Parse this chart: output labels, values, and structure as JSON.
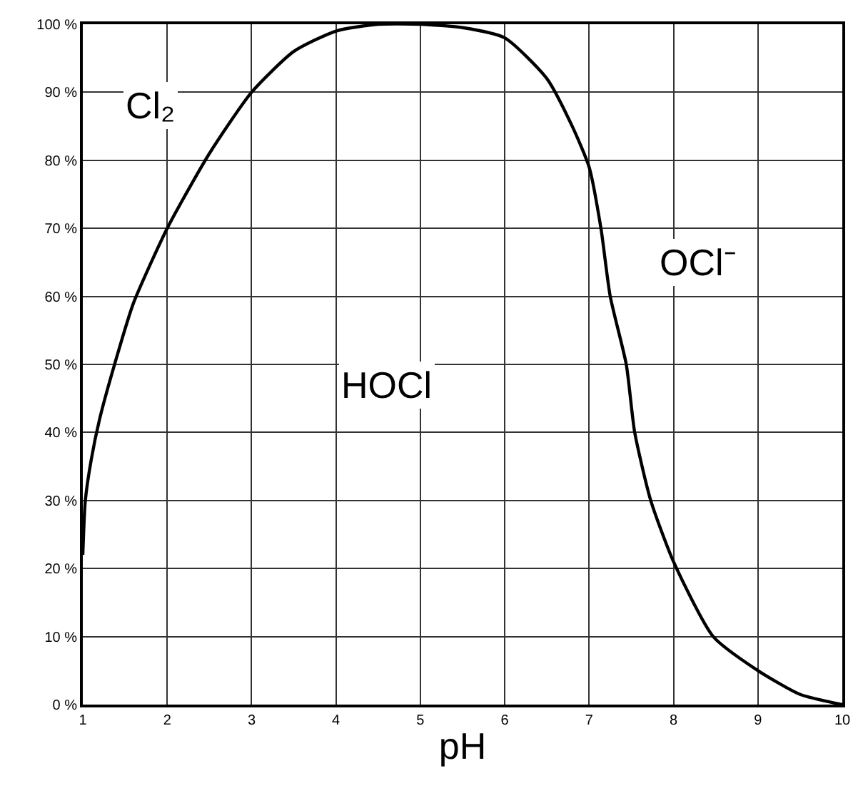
{
  "chart_data": {
    "type": "line",
    "xlabel": "pH",
    "x": [
      1,
      1.03,
      1.1,
      1.2,
      1.4,
      1.6,
      2,
      2.5,
      3,
      3.5,
      4,
      4.5,
      5,
      5.5,
      6,
      6.5,
      6.8,
      7,
      7.14,
      7.25,
      7.44,
      7.54,
      7.73,
      8,
      8.47,
      9,
      9.5,
      10
    ],
    "series": [
      {
        "color": "#000000",
        "values": [
          22,
          30,
          36,
          42,
          51,
          59,
          70,
          81,
          90,
          96,
          99,
          100,
          100,
          99.5,
          98,
          92,
          85,
          79,
          70,
          60,
          50,
          40,
          30,
          21,
          10,
          5,
          1.5,
          0
        ]
      }
    ],
    "xlim": [
      1,
      10
    ],
    "xticks": [
      1,
      2,
      3,
      4,
      5,
      6,
      7,
      8,
      9,
      10
    ],
    "ylim": [
      0,
      100
    ],
    "yticks": [
      {
        "value": 0,
        "label": "0 %"
      },
      {
        "value": 10,
        "label": "10 %"
      },
      {
        "value": 20,
        "label": "20 %"
      },
      {
        "value": 30,
        "label": "30 %"
      },
      {
        "value": 40,
        "label": "40 %"
      },
      {
        "value": 50,
        "label": "50 %"
      },
      {
        "value": 60,
        "label": "60 %"
      },
      {
        "value": 70,
        "label": "70 %"
      },
      {
        "value": 80,
        "label": "80 %"
      },
      {
        "value": 90,
        "label": "90 %"
      },
      {
        "value": 100,
        "label": "100 %"
      }
    ],
    "grid": true,
    "marker": "none",
    "line_style": "solid",
    "annotations": [
      "Cl₂",
      "HOCl",
      "OCl⁻"
    ]
  }
}
